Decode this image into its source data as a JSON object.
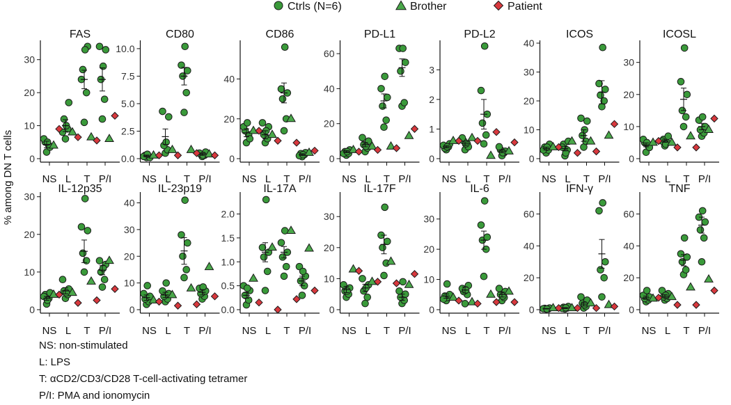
{
  "colors": {
    "ctrl": "#3a9a3a",
    "brother": "#4aa84a",
    "patient": "#d8383d",
    "outline": "#1a1a1a"
  },
  "legend": [
    {
      "shape": "circle",
      "label": "Ctrls (N=6)"
    },
    {
      "shape": "triangle",
      "label": "Brother"
    },
    {
      "shape": "diamond",
      "label": "Patient"
    }
  ],
  "ylabel": "% among DN T cells",
  "xcategories": [
    "NS",
    "L",
    "T",
    "P/I"
  ],
  "footnotes": [
    "NS: non-stimulated",
    "L: LPS",
    "T: αCD2/CD3/CD28 T-cell-activating tetramer",
    "P/I: PMA and ionomycin"
  ],
  "chart_data": [
    {
      "type": "scatter",
      "title": "FAS",
      "ylim": [
        0,
        35
      ],
      "yticks": [
        0,
        10,
        20,
        30
      ],
      "ctrl": [
        [
          2,
          4,
          5,
          3.5,
          6,
          5
        ],
        [
          6,
          9,
          12,
          17,
          8,
          10
        ],
        [
          11,
          20,
          27,
          34,
          24,
          33
        ],
        [
          12,
          18,
          24,
          33,
          34,
          28
        ]
      ],
      "mean": [
        [
          4.3,
          1
        ],
        [
          10,
          1.8
        ],
        [
          24,
          2.8
        ],
        [
          24,
          3.5
        ]
      ],
      "brother": [
        4,
        8,
        6.5,
        6
      ],
      "patient": [
        9,
        6.5,
        5.5,
        13
      ]
    },
    {
      "type": "scatter",
      "title": "CD80",
      "ylim": [
        0,
        10.5
      ],
      "yticks": [
        0.0,
        2.5,
        5.0,
        7.5,
        10.0
      ],
      "ytickLabels": [
        "0.0",
        "2.5",
        "5.0",
        "7.5",
        "10.0"
      ],
      "ctrl": [
        [
          0.1,
          0.2,
          0.3,
          0.1,
          0.2,
          0.4
        ],
        [
          0.5,
          0.8,
          1.2,
          3.8,
          4.3,
          1.5
        ],
        [
          4.2,
          6,
          7.5,
          8,
          8.5,
          10.2
        ],
        [
          0.2,
          0.3,
          0.4,
          0.6,
          0.5,
          0.3
        ]
      ],
      "mean": [
        [
          0.25,
          0.08
        ],
        [
          2,
          0.7
        ],
        [
          7.5,
          0.8
        ],
        [
          0.4,
          0.1
        ]
      ],
      "brother": [
        0.3,
        0.8,
        0.8,
        0.4
      ],
      "patient": [
        0.3,
        0.3,
        0.5,
        0.3
      ]
    },
    {
      "type": "scatter",
      "title": "CD86",
      "ylim": [
        0,
        58
      ],
      "yticks": [
        0,
        20,
        40
      ],
      "ctrl": [
        [
          8,
          12,
          14,
          10,
          16,
          18
        ],
        [
          8,
          10,
          12,
          16,
          18,
          14
        ],
        [
          14,
          20,
          30,
          33,
          35,
          56
        ],
        [
          1,
          2,
          2.5,
          3,
          1.5,
          2
        ]
      ],
      "mean": [
        [
          13,
          2
        ],
        [
          12,
          2
        ],
        [
          33,
          5
        ],
        [
          2,
          0.5
        ]
      ],
      "brother": [
        14,
        12,
        20,
        3
      ],
      "patient": [
        14,
        9,
        8,
        4
      ]
    },
    {
      "type": "scatter",
      "title": "PD-L1",
      "ylim": [
        0,
        66
      ],
      "yticks": [
        0,
        20,
        40,
        60
      ],
      "ctrl": [
        [
          2,
          3,
          4,
          5,
          3,
          4
        ],
        [
          4,
          6,
          8,
          10,
          12,
          7
        ],
        [
          18,
          22,
          30,
          35,
          40,
          47
        ],
        [
          30,
          32,
          50,
          55,
          63,
          63
        ]
      ],
      "mean": [
        [
          4,
          0.6
        ],
        [
          8,
          1.2
        ],
        [
          33,
          4
        ],
        [
          52,
          5
        ]
      ],
      "brother": [
        5,
        7,
        7,
        13
      ],
      "patient": [
        4,
        5,
        6,
        17
      ]
    },
    {
      "type": "scatter",
      "title": "PD-L2",
      "ylim": [
        0,
        3.9
      ],
      "yticks": [
        0,
        1,
        2,
        3
      ],
      "ctrl": [
        [
          0.3,
          0.4,
          0.35,
          0.5,
          0.45,
          0.4
        ],
        [
          0.3,
          0.5,
          0.6,
          0.4,
          0.7,
          0.5
        ],
        [
          0.5,
          0.8,
          1.2,
          1.5,
          2.3,
          3.8
        ],
        [
          0.1,
          0.2,
          0.3,
          0.25,
          0.4,
          0.2
        ]
      ],
      "mean": [
        [
          0.4,
          0.04
        ],
        [
          0.5,
          0.06
        ],
        [
          1.5,
          0.5
        ],
        [
          0.25,
          0.05
        ]
      ],
      "brother": [
        0.6,
        0.7,
        0.1,
        0.25
      ],
      "patient": [
        0.6,
        0.6,
        0.9,
        0.55
      ]
    },
    {
      "type": "scatter",
      "title": "ICOS",
      "ylim": [
        0,
        40
      ],
      "yticks": [
        0,
        10,
        20,
        30,
        40
      ],
      "ctrl": [
        [
          2,
          3,
          4,
          5,
          3,
          4
        ],
        [
          1,
          3,
          5,
          6,
          4,
          2
        ],
        [
          4,
          6,
          8,
          13,
          14,
          10
        ],
        [
          18,
          20,
          22,
          24,
          26,
          38.5
        ]
      ],
      "mean": [
        [
          3.5,
          0.5
        ],
        [
          3.5,
          0.8
        ],
        [
          8,
          2
        ],
        [
          23,
          4
        ]
      ],
      "brother": [
        4,
        6,
        6,
        8
      ],
      "patient": [
        4,
        2,
        2.5,
        12
      ]
    },
    {
      "type": "scatter",
      "title": "ICOSL",
      "ylim": [
        0,
        36
      ],
      "yticks": [
        0,
        10,
        20,
        30
      ],
      "ctrl": [
        [
          2,
          4,
          5,
          3.5,
          6,
          5
        ],
        [
          4,
          5,
          6,
          7,
          5.5,
          4.5
        ],
        [
          10,
          13,
          15,
          20,
          24,
          34.5
        ],
        [
          7,
          8,
          9,
          10,
          12,
          13
        ]
      ],
      "mean": [
        [
          4.3,
          0.6
        ],
        [
          5.5,
          0.4
        ],
        [
          18.5,
          3.5
        ],
        [
          10,
          1
        ]
      ],
      "brother": [
        5,
        5,
        7,
        9
      ],
      "patient": [
        5.5,
        3.5,
        3.5,
        12.5
      ]
    },
    {
      "type": "scatter",
      "title": "IL-12p35",
      "ylim": [
        0,
        30.5
      ],
      "yticks": [
        0,
        10,
        20,
        30
      ],
      "ctrl": [
        [
          1.5,
          3,
          4,
          4.5,
          3.5,
          2.5
        ],
        [
          3,
          4,
          5,
          5.5,
          8,
          4.5
        ],
        [
          10,
          13,
          15,
          21,
          22,
          29.5
        ],
        [
          6,
          8,
          10,
          12,
          13,
          11
        ]
      ],
      "mean": [
        [
          3,
          0.5
        ],
        [
          5,
          0.8
        ],
        [
          15.5,
          3
        ],
        [
          10.5,
          1.2
        ]
      ],
      "brother": [
        4,
        4.5,
        7.5,
        13
      ],
      "patient": [
        4,
        1.8,
        2.5,
        5.5
      ]
    },
    {
      "type": "scatter",
      "title": "IL-23p19",
      "ylim": [
        0,
        43
      ],
      "yticks": [
        0,
        10,
        20,
        30,
        40
      ],
      "ctrl": [
        [
          2,
          3,
          4,
          5,
          6,
          9
        ],
        [
          3,
          4,
          5,
          6,
          7,
          10
        ],
        [
          12,
          15,
          20,
          25,
          28,
          41
        ],
        [
          4,
          5,
          6,
          7,
          8,
          8.5
        ]
      ],
      "mean": [
        [
          4.5,
          1
        ],
        [
          5.5,
          1
        ],
        [
          22,
          5
        ],
        [
          6.5,
          1
        ]
      ],
      "brother": [
        3.5,
        5.5,
        8,
        16
      ],
      "patient": [
        3,
        1.5,
        2,
        5
      ]
    },
    {
      "type": "scatter",
      "title": "IL-17A",
      "ylim": [
        0,
        2.4
      ],
      "yticks": [
        0.0,
        0.5,
        1.0,
        1.5,
        2.0
      ],
      "ytickLabels": [
        "0.0",
        "0.5",
        "1.0",
        "1.5",
        "2.0"
      ],
      "ctrl": [
        [
          0.1,
          0.2,
          0.3,
          0.4,
          0.5,
          0.45
        ],
        [
          0.4,
          0.8,
          1.1,
          1.2,
          1.3,
          2.3
        ],
        [
          0.7,
          0.9,
          1.1,
          1.2,
          1.4,
          1.65
        ],
        [
          0.3,
          0.5,
          0.6,
          0.7,
          0.9,
          0.8
        ]
      ],
      "mean": [
        [
          0.3,
          0.06
        ],
        [
          1.2,
          0.2
        ],
        [
          1.2,
          0.12
        ],
        [
          0.6,
          0.1
        ]
      ],
      "brother": [
        0.65,
        1.3,
        1.65,
        1.28
      ],
      "patient": [
        0.15,
        0.0,
        0.22,
        0.4
      ]
    },
    {
      "type": "scatter",
      "title": "IL-17F",
      "ylim": [
        0,
        37
      ],
      "yticks": [
        0,
        10,
        20,
        30
      ],
      "ctrl": [
        [
          4,
          5,
          6,
          7,
          8,
          6
        ],
        [
          2,
          4,
          6,
          8,
          10,
          7
        ],
        [
          11,
          15,
          20,
          22,
          24,
          33
        ],
        [
          2,
          3,
          4,
          5,
          6,
          9
        ]
      ],
      "mean": [
        [
          6.5,
          1
        ],
        [
          7,
          1.2
        ],
        [
          21,
          3
        ],
        [
          4,
          1
        ]
      ],
      "brother": [
        13,
        9,
        15.5,
        8
      ],
      "patient": [
        12.5,
        9,
        8.5,
        11.5
      ]
    },
    {
      "type": "scatter",
      "title": "IL-6",
      "ylim": [
        0,
        38
      ],
      "yticks": [
        0,
        10,
        20,
        30
      ],
      "ctrl": [
        [
          3,
          4,
          4.5,
          5,
          3.5,
          8.5
        ],
        [
          2,
          5,
          6,
          8,
          7,
          6.5
        ],
        [
          11,
          20,
          23,
          24,
          28,
          36
        ],
        [
          3,
          4,
          5,
          6,
          7,
          4.5
        ]
      ],
      "mean": [
        [
          4.5,
          0.7
        ],
        [
          6.5,
          1
        ],
        [
          23,
          3
        ],
        [
          5,
          0.8
        ]
      ],
      "brother": [
        4,
        2.5,
        5,
        6
      ],
      "patient": [
        3,
        2,
        2.5,
        2.5
      ]
    },
    {
      "type": "scatter",
      "title": "IFN-γ",
      "ylim": [
        0,
        72
      ],
      "yticks": [
        0,
        20,
        40,
        60
      ],
      "ctrl": [
        [
          0.3,
          0.5,
          0.8,
          1,
          0.6,
          0.4
        ],
        [
          0.5,
          1,
          1.5,
          2,
          0.8,
          1.2
        ],
        [
          1,
          2,
          4,
          6,
          8,
          3
        ],
        [
          8,
          20,
          25,
          30,
          62,
          67
        ]
      ],
      "mean": [
        [
          0.6,
          0.15
        ],
        [
          1,
          0.3
        ],
        [
          3.5,
          1.2
        ],
        [
          35,
          9
        ]
      ],
      "brother": [
        1,
        1,
        4,
        3
      ],
      "patient": [
        1,
        1,
        1,
        2
      ]
    },
    {
      "type": "scatter",
      "title": "TNF",
      "ylim": [
        0,
        72
      ],
      "yticks": [
        0,
        20,
        40,
        60
      ],
      "ctrl": [
        [
          5,
          6,
          7,
          8,
          9,
          12
        ],
        [
          6,
          7,
          8,
          10,
          12,
          9
        ],
        [
          22,
          25,
          30,
          33,
          35,
          45
        ],
        [
          30,
          45,
          50,
          55,
          58,
          62
        ]
      ],
      "mean": [
        [
          7.5,
          1
        ],
        [
          8.5,
          1
        ],
        [
          31,
          3.5
        ],
        [
          53,
          5
        ]
      ],
      "brother": [
        7,
        8,
        14,
        19
      ],
      "patient": [
        7.5,
        3,
        3,
        12
      ]
    }
  ]
}
